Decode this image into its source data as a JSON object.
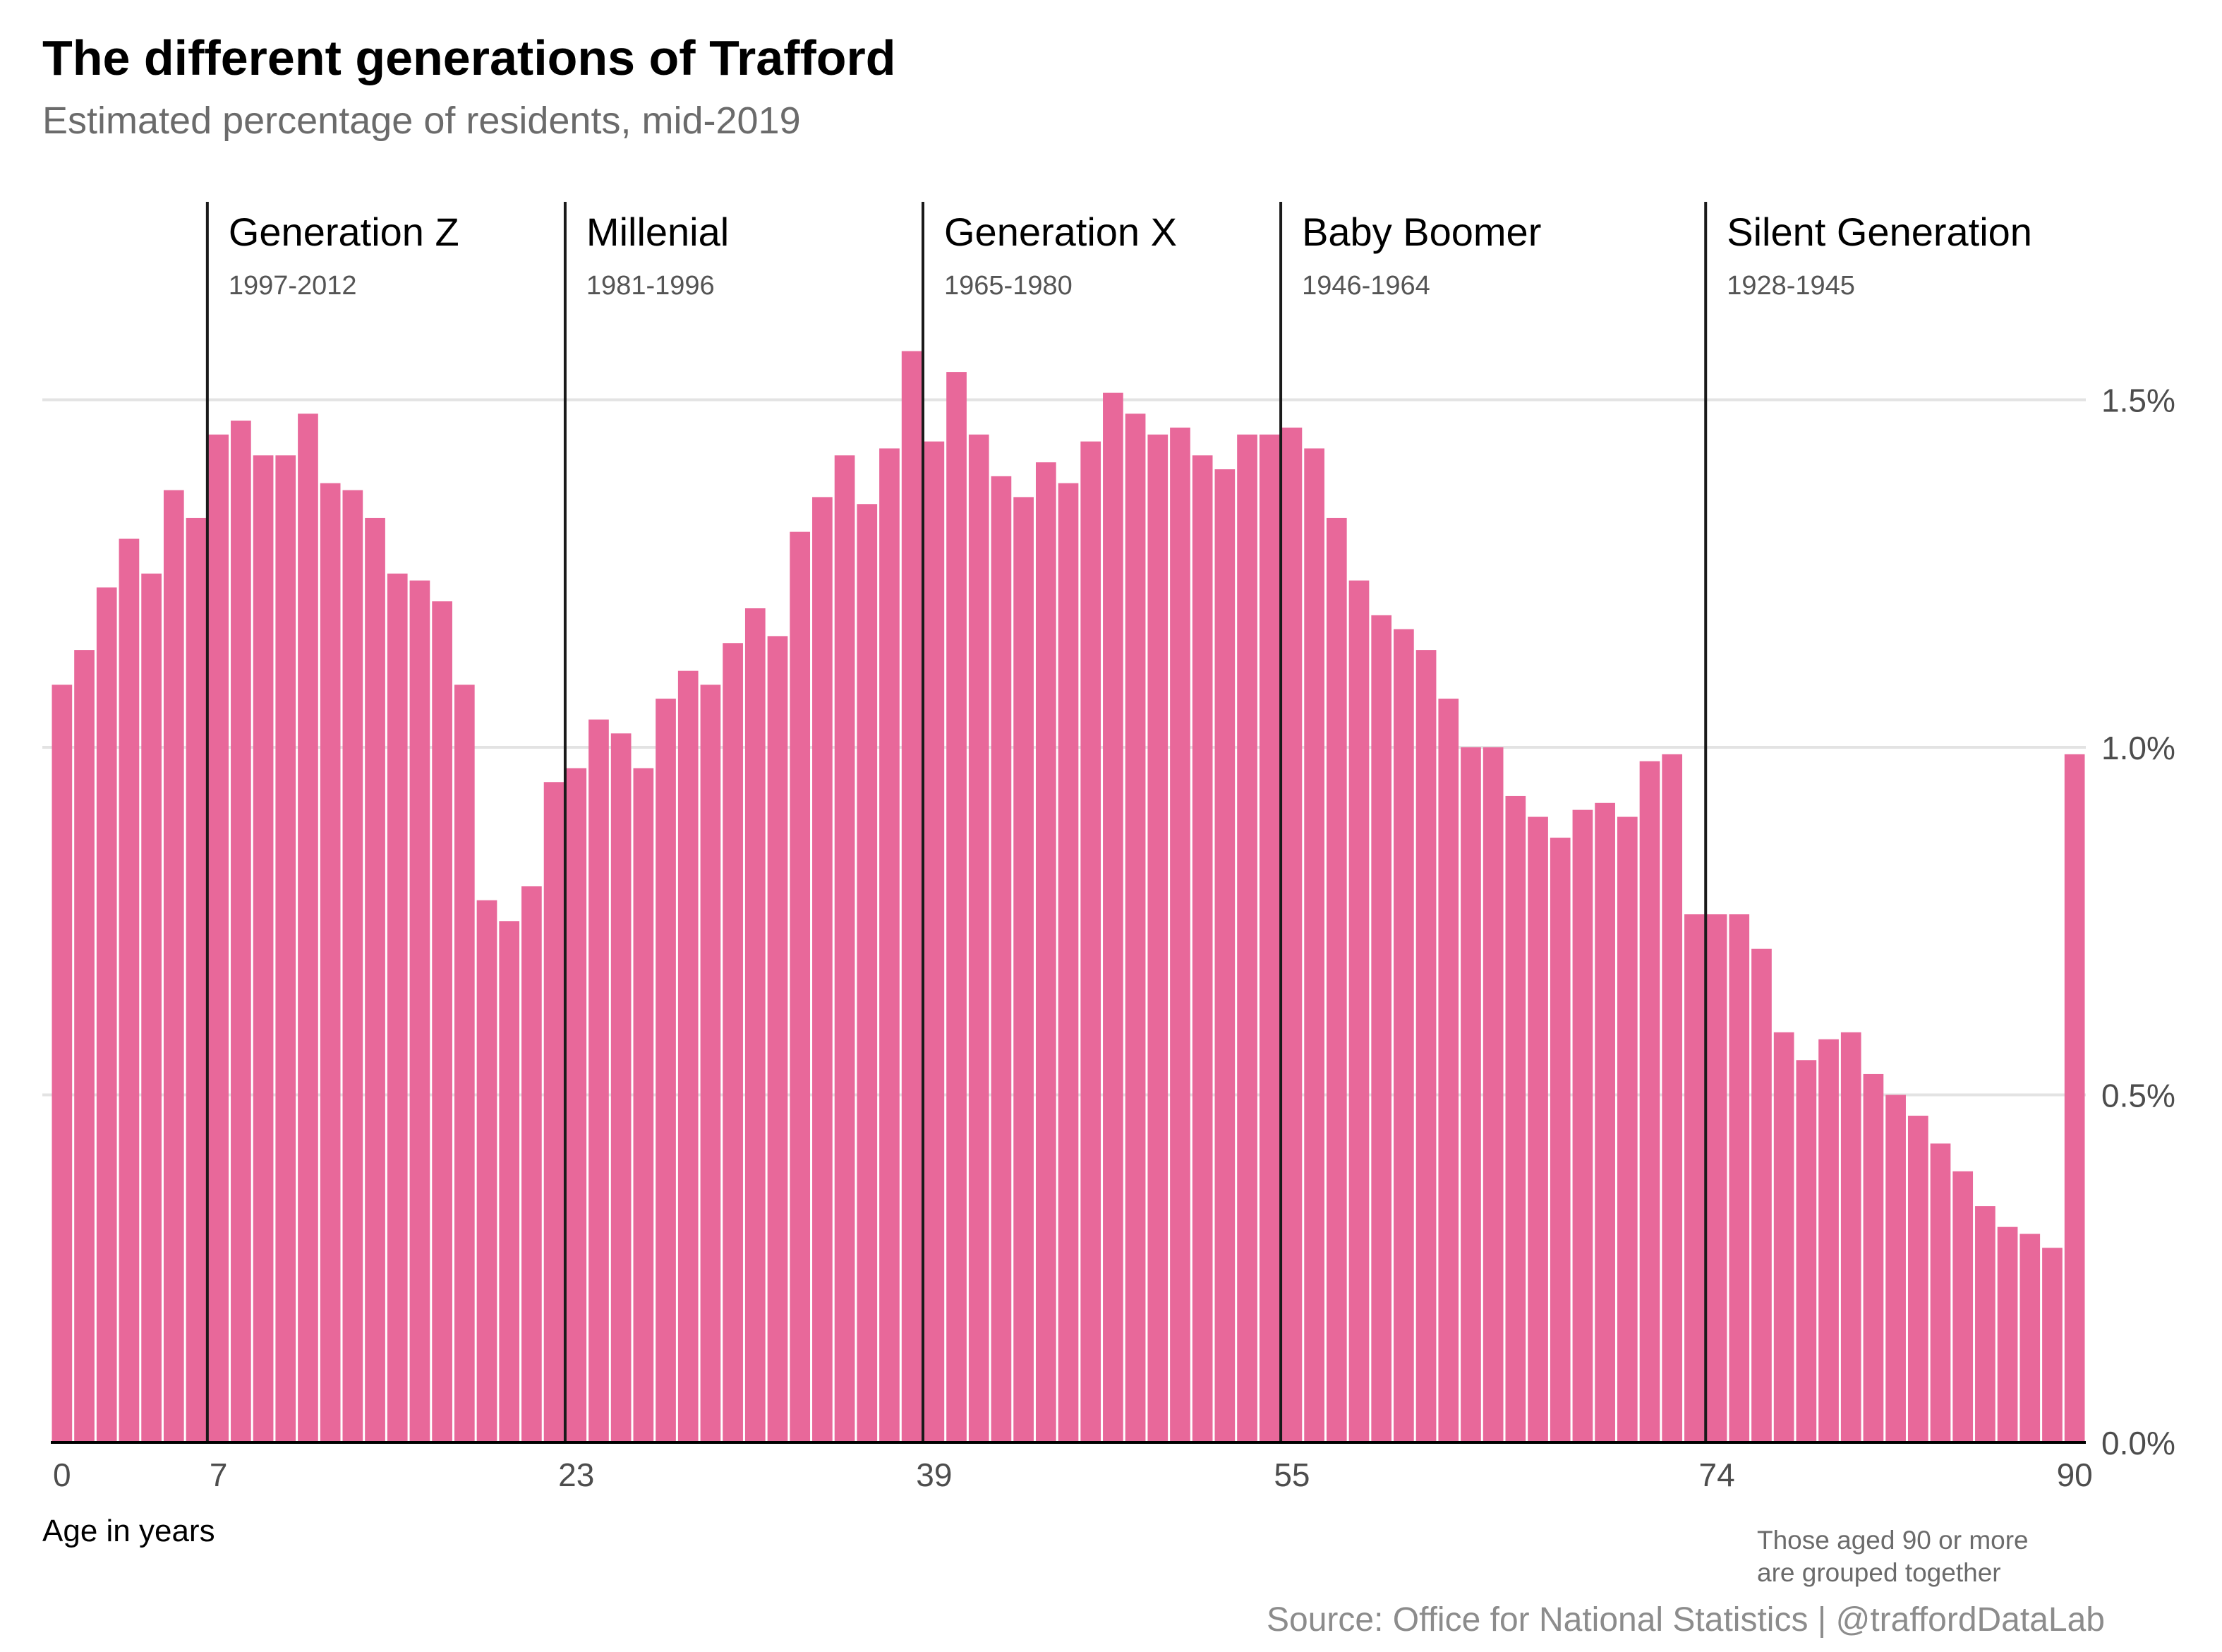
{
  "header": {
    "title": "The different generations of Trafford",
    "subtitle": "Estimated percentage of residents, mid-2019"
  },
  "footer": {
    "xlabel": "Age in years",
    "note_line1": "Those aged 90 or more",
    "note_line2": "are grouped together",
    "source": "Source: Office for National Statistics | @traffordDataLab"
  },
  "colors": {
    "bar": "#e8689a",
    "divider": "#1a1a1a",
    "grid": "#e3e3e3",
    "axis_text": "#4d4d4d"
  },
  "chart_data": {
    "type": "bar",
    "title": "The different generations of Trafford",
    "subtitle": "Estimated percentage of residents, mid-2019",
    "xlabel": "Age in years",
    "ylabel": "",
    "y_axis_position": "right",
    "ylim": [
      0,
      1.6
    ],
    "yticks": [
      0.0,
      0.5,
      1.0,
      1.5
    ],
    "ytick_labels": [
      "0.0%",
      "0.5%",
      "1.0%",
      "1.5%"
    ],
    "xticks": [
      0,
      7,
      23,
      39,
      55,
      74,
      90
    ],
    "xtick_labels": [
      "0",
      "7",
      "23",
      "39",
      "55",
      "74",
      "90"
    ],
    "grid": "horizontal",
    "categories": [
      0,
      1,
      2,
      3,
      4,
      5,
      6,
      7,
      8,
      9,
      10,
      11,
      12,
      13,
      14,
      15,
      16,
      17,
      18,
      19,
      20,
      21,
      22,
      23,
      24,
      25,
      26,
      27,
      28,
      29,
      30,
      31,
      32,
      33,
      34,
      35,
      36,
      37,
      38,
      39,
      40,
      41,
      42,
      43,
      44,
      45,
      46,
      47,
      48,
      49,
      50,
      51,
      52,
      53,
      54,
      55,
      56,
      57,
      58,
      59,
      60,
      61,
      62,
      63,
      64,
      65,
      66,
      67,
      68,
      69,
      70,
      71,
      72,
      73,
      74,
      75,
      76,
      77,
      78,
      79,
      80,
      81,
      82,
      83,
      84,
      85,
      86,
      87,
      88,
      89,
      90
    ],
    "values": [
      1.09,
      1.14,
      1.23,
      1.3,
      1.25,
      1.37,
      1.33,
      1.45,
      1.47,
      1.42,
      1.42,
      1.48,
      1.38,
      1.37,
      1.33,
      1.25,
      1.24,
      1.21,
      1.09,
      0.78,
      0.75,
      0.8,
      0.95,
      0.97,
      1.04,
      1.02,
      0.97,
      1.07,
      1.11,
      1.09,
      1.15,
      1.2,
      1.16,
      1.31,
      1.36,
      1.42,
      1.35,
      1.43,
      1.57,
      1.44,
      1.54,
      1.45,
      1.39,
      1.36,
      1.41,
      1.38,
      1.44,
      1.51,
      1.48,
      1.45,
      1.46,
      1.42,
      1.4,
      1.45,
      1.45,
      1.46,
      1.43,
      1.33,
      1.24,
      1.19,
      1.17,
      1.14,
      1.07,
      1.0,
      1.0,
      0.93,
      0.9,
      0.87,
      0.91,
      0.92,
      0.9,
      0.98,
      0.99,
      0.76,
      0.76,
      0.76,
      0.71,
      0.59,
      0.55,
      0.58,
      0.59,
      0.53,
      0.5,
      0.47,
      0.43,
      0.39,
      0.34,
      0.31,
      0.3,
      0.28,
      0.99
    ],
    "generations": [
      {
        "name": "Generation Z",
        "years": "1997-2012",
        "start_age": 7
      },
      {
        "name": "Millenial",
        "years": "1981-1996",
        "start_age": 23
      },
      {
        "name": "Generation X",
        "years": "1965-1980",
        "start_age": 39
      },
      {
        "name": "Baby Boomer",
        "years": "1946-1964",
        "start_age": 55
      },
      {
        "name": "Silent Generation",
        "years": "1928-1945",
        "start_age": 74
      }
    ],
    "annotation": "Those aged 90 or more are grouped together"
  }
}
